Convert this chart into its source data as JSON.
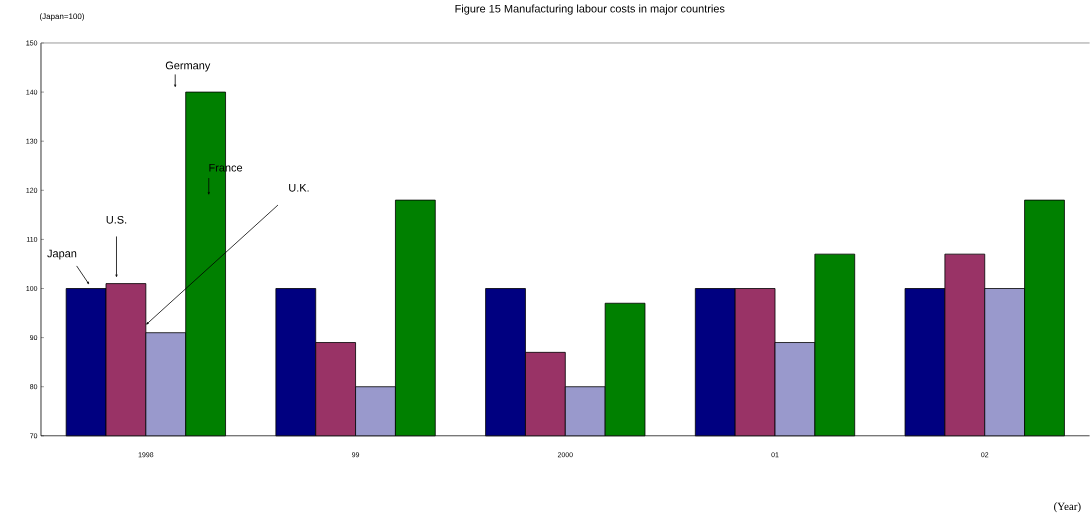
{
  "chart_data": {
    "type": "bar",
    "title": "Figure 15  Manufacturing labour costs in major countries",
    "ylabel": "(Japan=100)",
    "xlabel": "(Year)",
    "categories": [
      "1998",
      "99",
      "2000",
      "01",
      "02"
    ],
    "series": [
      {
        "name": "Japan",
        "color": "#000080",
        "values": [
          100,
          100,
          100,
          100,
          100
        ]
      },
      {
        "name": "U.S.",
        "color": "#993366",
        "values": [
          101,
          89,
          87,
          100,
          107
        ]
      },
      {
        "color": "#9999cc",
        "values": [
          91,
          80,
          80,
          89,
          100
        ]
      },
      {
        "name": "Germany",
        "color": "#008000",
        "values": [
          140,
          118,
          97,
          107,
          118
        ]
      }
    ],
    "annotations": [
      "France",
      "U.K."
    ],
    "ylim": [
      70,
      150
    ],
    "yticks": [
      70,
      80,
      90,
      100,
      110,
      120,
      130,
      140,
      150
    ],
    "grid": false,
    "legend": false
  }
}
